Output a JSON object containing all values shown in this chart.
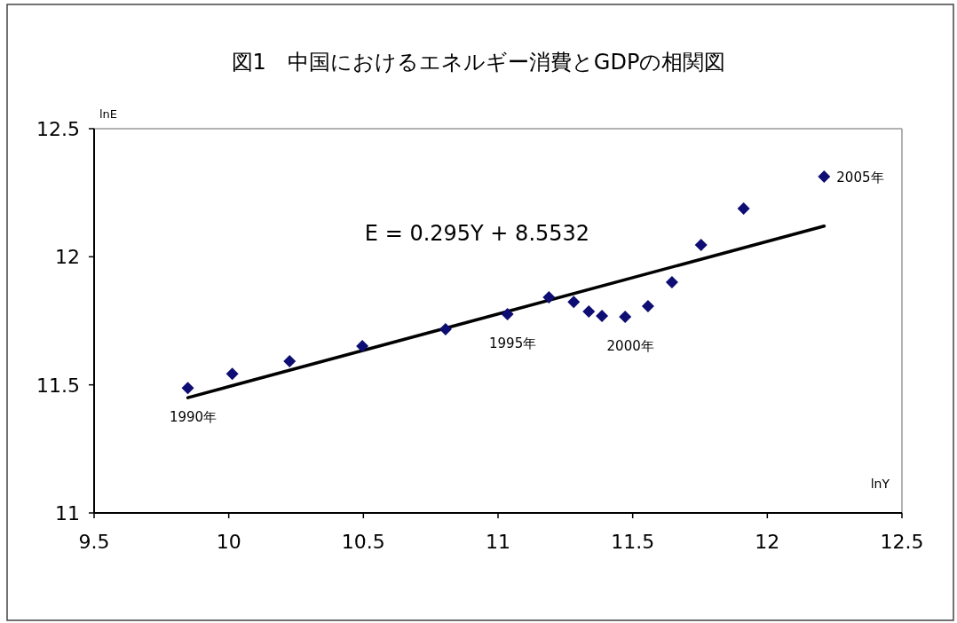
{
  "chart_data": {
    "type": "scatter",
    "title": "図1　中国におけるエネルギー消費とGDPの相関図",
    "xlabel": "lnY",
    "ylabel": "lnE",
    "xlim": [
      9.5,
      12.5
    ],
    "xticks": [
      9.5,
      10,
      10.5,
      11,
      11.5,
      12,
      12.5
    ],
    "ylim": [
      11,
      12.5
    ],
    "yticks": [
      11,
      11.5,
      12,
      12.5
    ],
    "grid": false,
    "marker": "diamond",
    "series": [
      {
        "type": "scatter",
        "color": "#0d0d73",
        "x": [
          9.848,
          10.013,
          10.226,
          10.496,
          10.805,
          11.035,
          11.189,
          11.281,
          11.337,
          11.386,
          11.472,
          11.557,
          11.646,
          11.754,
          11.912,
          12.211
        ],
        "values": [
          11.488,
          11.543,
          11.592,
          11.651,
          11.717,
          11.776,
          11.842,
          11.824,
          11.786,
          11.769,
          11.766,
          11.807,
          11.901,
          12.046,
          12.188,
          12.313
        ]
      },
      {
        "type": "line",
        "color": "#000000",
        "line_style": "solid",
        "marker": "none",
        "x": [
          9.848,
          12.211
        ],
        "values": [
          11.45,
          12.12
        ]
      }
    ],
    "annotations": [
      {
        "text": "1990年",
        "x": 9.848,
        "y": 11.488
      },
      {
        "text": "1995年",
        "x": 11.035,
        "y": 11.776
      },
      {
        "text": "2000年",
        "x": 11.472,
        "y": 11.766
      },
      {
        "text": "2005年",
        "x": 12.211,
        "y": 12.313
      },
      "E = 0.295Y + 8.5532"
    ]
  }
}
